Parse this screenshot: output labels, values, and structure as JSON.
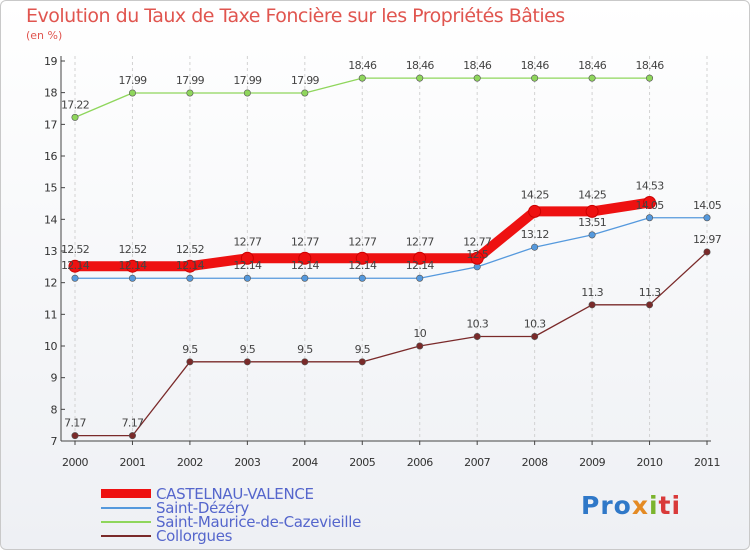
{
  "chart_data": {
    "type": "line",
    "title": "Evolution du Taux de Taxe Foncière sur les Propriétés Bâties",
    "ylabel": "(en %)",
    "x": [
      "2000",
      "2001",
      "2002",
      "2003",
      "2004",
      "2005",
      "2006",
      "2007",
      "2008",
      "2009",
      "2010",
      "2011"
    ],
    "ylim": [
      7,
      19
    ],
    "yticks": [
      7,
      8,
      9,
      10,
      11,
      12,
      13,
      14,
      15,
      16,
      17,
      18,
      19
    ],
    "grid": "vertical-dashed",
    "legend_position": "bottom-left",
    "series": [
      {
        "name": "CASTELNAU-VALENCE",
        "color": "#ee1111",
        "values": [
          12.52,
          12.52,
          12.52,
          12.77,
          12.77,
          12.77,
          12.77,
          12.77,
          14.25,
          14.25,
          14.53,
          null
        ],
        "labels": [
          "12.52",
          "12.52",
          "12.52",
          "12.77",
          "12.77",
          "12.77",
          "12.77",
          "12.77",
          "14.25",
          "14.25",
          "14.53",
          ""
        ]
      },
      {
        "name": "Saint-Dézéry",
        "color": "#5599dd",
        "values": [
          12.14,
          12.14,
          12.14,
          12.14,
          12.14,
          12.14,
          12.14,
          12.5,
          13.12,
          13.51,
          14.05,
          14.05
        ],
        "labels": [
          "12.14",
          "12.14",
          "12.14",
          "12.14",
          "12.14",
          "12.14",
          "12.14",
          "12.5",
          "13.12",
          "13.51",
          "14.05",
          "14.05"
        ]
      },
      {
        "name": "Saint-Maurice-de-Cazevieille",
        "color": "#8fd65c",
        "values": [
          17.22,
          17.99,
          17.99,
          17.99,
          17.99,
          18.46,
          18.46,
          18.46,
          18.46,
          18.46,
          18.46,
          null
        ],
        "labels": [
          "17.22",
          "17.99",
          "17.99",
          "17.99",
          "17.99",
          "18.46",
          "18.46",
          "18.46",
          "18.46",
          "18.46",
          "18.46",
          ""
        ]
      },
      {
        "name": "Collorgues",
        "color": "#7a2a2a",
        "values": [
          7.17,
          7.17,
          9.5,
          9.5,
          9.5,
          9.5,
          10,
          10.3,
          10.3,
          11.3,
          11.3,
          12.97
        ],
        "labels": [
          "7.17",
          "7.17",
          "9.5",
          "9.5",
          "9.5",
          "9.5",
          "10",
          "10.3",
          "10.3",
          "11.3",
          "11.3",
          "12.97"
        ]
      }
    ]
  },
  "branding": {
    "logo_text": [
      "Pro",
      "x",
      "i",
      "ti"
    ]
  }
}
